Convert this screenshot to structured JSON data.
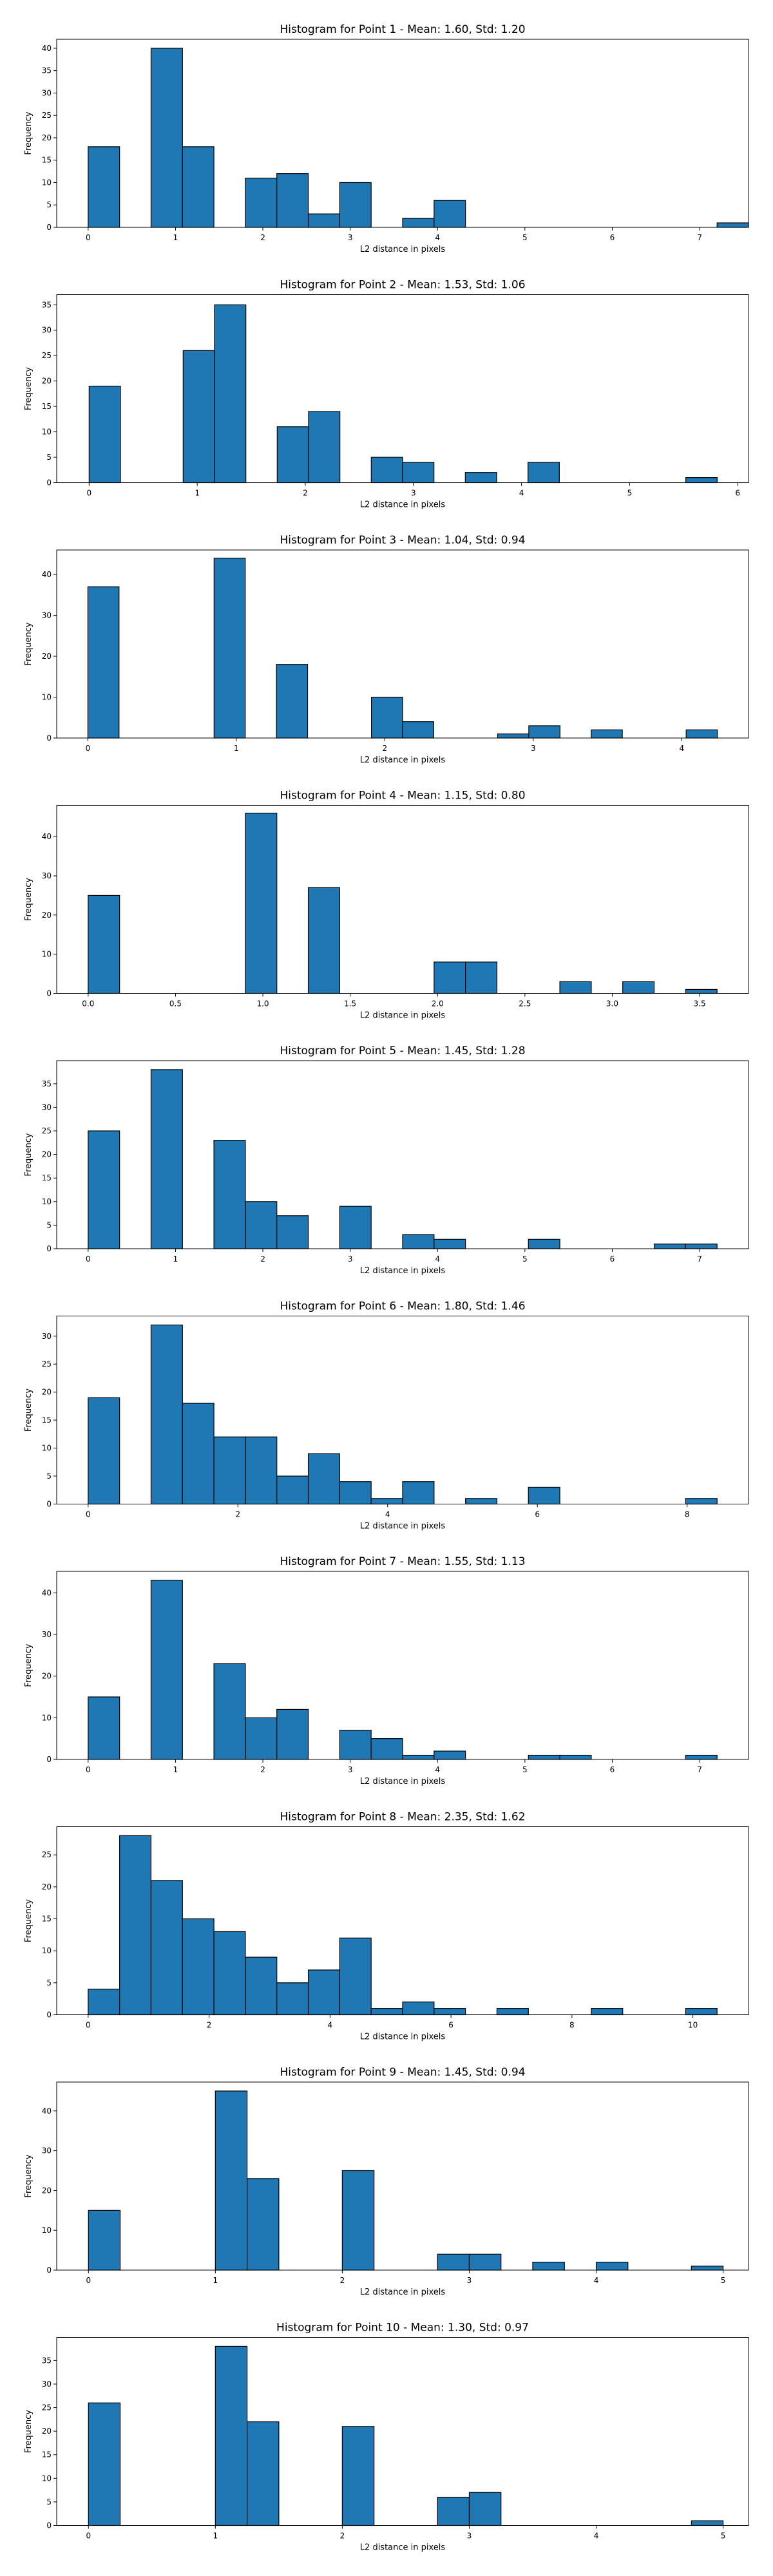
{
  "figure": {
    "background": "#ffffff",
    "bar_color": "#1f77b4",
    "edge_color": "#000000"
  },
  "chart_data": [
    {
      "type": "bar",
      "title": "Histogram for Point 1 - Mean: 1.60, Std: 1.20",
      "xlabel": "L2 distance in pixels",
      "ylabel": "Frequency",
      "xlim": [
        -0.36,
        7.56
      ],
      "ylim": [
        0,
        42
      ],
      "xticks": [
        0,
        1,
        2,
        3,
        4,
        5,
        6,
        7
      ],
      "yticks": [
        0,
        5,
        10,
        15,
        20,
        25,
        30,
        35,
        40
      ],
      "xtick_labels": [
        "0",
        "1",
        "2",
        "3",
        "4",
        "5",
        "6",
        "7"
      ],
      "ytick_labels": [
        "0",
        "5",
        "10",
        "15",
        "20",
        "25",
        "30",
        "35",
        "40"
      ],
      "bins": [
        {
          "x0": 0.0,
          "x1": 0.36,
          "count": 18
        },
        {
          "x0": 0.72,
          "x1": 1.08,
          "count": 40
        },
        {
          "x0": 1.08,
          "x1": 1.44,
          "count": 18
        },
        {
          "x0": 1.8,
          "x1": 2.16,
          "count": 11
        },
        {
          "x0": 2.16,
          "x1": 2.52,
          "count": 12
        },
        {
          "x0": 2.52,
          "x1": 2.88,
          "count": 3
        },
        {
          "x0": 2.88,
          "x1": 3.24,
          "count": 10
        },
        {
          "x0": 3.6,
          "x1": 3.96,
          "count": 2
        },
        {
          "x0": 3.96,
          "x1": 4.32,
          "count": 6
        },
        {
          "x0": 7.2,
          "x1": 7.56,
          "count": 1
        }
      ]
    },
    {
      "type": "bar",
      "title": "Histogram for Point 2 - Mean: 1.53, Std: 1.06",
      "xlabel": "L2 distance in pixels",
      "ylabel": "Frequency",
      "xlim": [
        -0.3,
        6.1
      ],
      "ylim": [
        0,
        37
      ],
      "xticks": [
        0,
        1,
        2,
        3,
        4,
        5,
        6
      ],
      "yticks": [
        0,
        5,
        10,
        15,
        20,
        25,
        30,
        35
      ],
      "xtick_labels": [
        "0",
        "1",
        "2",
        "3",
        "4",
        "5",
        "6"
      ],
      "ytick_labels": [
        "0",
        "5",
        "10",
        "15",
        "20",
        "25",
        "30",
        "35"
      ],
      "bins": [
        {
          "x0": 0.0,
          "x1": 0.29,
          "count": 19
        },
        {
          "x0": 0.87,
          "x1": 1.16,
          "count": 26
        },
        {
          "x0": 1.16,
          "x1": 1.45,
          "count": 35
        },
        {
          "x0": 1.74,
          "x1": 2.03,
          "count": 11
        },
        {
          "x0": 2.03,
          "x1": 2.32,
          "count": 14
        },
        {
          "x0": 2.61,
          "x1": 2.9,
          "count": 5
        },
        {
          "x0": 2.9,
          "x1": 3.19,
          "count": 4
        },
        {
          "x0": 3.48,
          "x1": 3.77,
          "count": 2
        },
        {
          "x0": 4.06,
          "x1": 4.35,
          "count": 4
        },
        {
          "x0": 5.52,
          "x1": 5.81,
          "count": 1
        }
      ]
    },
    {
      "type": "bar",
      "title": "Histogram for Point 3 - Mean: 1.04, Std: 0.94",
      "xlabel": "L2 distance in pixels",
      "ylabel": "Frequency",
      "xlim": [
        -0.21,
        4.45
      ],
      "ylim": [
        0,
        46
      ],
      "xticks": [
        0,
        1,
        2,
        3,
        4
      ],
      "yticks": [
        0,
        10,
        20,
        30,
        40
      ],
      "xtick_labels": [
        "0",
        "1",
        "2",
        "3",
        "4"
      ],
      "ytick_labels": [
        "0",
        "10",
        "20",
        "30",
        "40"
      ],
      "bins": [
        {
          "x0": 0.0,
          "x1": 0.21,
          "count": 37
        },
        {
          "x0": 0.85,
          "x1": 1.06,
          "count": 44
        },
        {
          "x0": 1.27,
          "x1": 1.48,
          "count": 18
        },
        {
          "x0": 1.91,
          "x1": 2.12,
          "count": 10
        },
        {
          "x0": 2.12,
          "x1": 2.33,
          "count": 4
        },
        {
          "x0": 2.76,
          "x1": 2.97,
          "count": 1
        },
        {
          "x0": 2.97,
          "x1": 3.18,
          "count": 3
        },
        {
          "x0": 3.39,
          "x1": 3.6,
          "count": 2
        },
        {
          "x0": 4.03,
          "x1": 4.24,
          "count": 2
        }
      ]
    },
    {
      "type": "bar",
      "title": "Histogram for Point 4 - Mean: 1.15, Std: 0.80",
      "xlabel": "L2 distance in pixels",
      "ylabel": "Frequency",
      "xlim": [
        -0.18,
        3.78
      ],
      "ylim": [
        0,
        48
      ],
      "xticks": [
        0.0,
        0.5,
        1.0,
        1.5,
        2.0,
        2.5,
        3.0,
        3.5
      ],
      "yticks": [
        0,
        10,
        20,
        30,
        40
      ],
      "xtick_labels": [
        "0.0",
        "0.5",
        "1.0",
        "1.5",
        "2.0",
        "2.5",
        "3.0",
        "3.5"
      ],
      "ytick_labels": [
        "0",
        "10",
        "20",
        "30",
        "40"
      ],
      "bins": [
        {
          "x0": 0.0,
          "x1": 0.18,
          "count": 25
        },
        {
          "x0": 0.9,
          "x1": 1.08,
          "count": 46
        },
        {
          "x0": 1.26,
          "x1": 1.44,
          "count": 27
        },
        {
          "x0": 1.98,
          "x1": 2.16,
          "count": 8
        },
        {
          "x0": 2.16,
          "x1": 2.34,
          "count": 8
        },
        {
          "x0": 2.7,
          "x1": 2.88,
          "count": 3
        },
        {
          "x0": 3.06,
          "x1": 3.24,
          "count": 3
        },
        {
          "x0": 3.42,
          "x1": 3.6,
          "count": 1
        }
      ]
    },
    {
      "type": "bar",
      "title": "Histogram for Point 5 - Mean: 1.45, Std: 1.28",
      "xlabel": "L2 distance in pixels",
      "ylabel": "Frequency",
      "xlim": [
        -0.36,
        7.56
      ],
      "ylim": [
        0,
        39.9
      ],
      "xticks": [
        0,
        1,
        2,
        3,
        4,
        5,
        6,
        7
      ],
      "yticks": [
        0,
        5,
        10,
        15,
        20,
        25,
        30,
        35
      ],
      "xtick_labels": [
        "0",
        "1",
        "2",
        "3",
        "4",
        "5",
        "6",
        "7"
      ],
      "ytick_labels": [
        "0",
        "5",
        "10",
        "15",
        "20",
        "25",
        "30",
        "35"
      ],
      "bins": [
        {
          "x0": 0.0,
          "x1": 0.36,
          "count": 25
        },
        {
          "x0": 0.72,
          "x1": 1.08,
          "count": 38
        },
        {
          "x0": 1.44,
          "x1": 1.8,
          "count": 23
        },
        {
          "x0": 1.8,
          "x1": 2.16,
          "count": 10
        },
        {
          "x0": 2.16,
          "x1": 2.52,
          "count": 7
        },
        {
          "x0": 2.88,
          "x1": 3.24,
          "count": 9
        },
        {
          "x0": 3.6,
          "x1": 3.96,
          "count": 3
        },
        {
          "x0": 3.96,
          "x1": 4.32,
          "count": 2
        },
        {
          "x0": 5.04,
          "x1": 5.4,
          "count": 2
        },
        {
          "x0": 6.48,
          "x1": 6.84,
          "count": 1
        },
        {
          "x0": 6.84,
          "x1": 7.2,
          "count": 1
        }
      ]
    },
    {
      "type": "bar",
      "title": "Histogram for Point 6 - Mean: 1.80, Std: 1.46",
      "xlabel": "L2 distance in pixels",
      "ylabel": "Frequency",
      "xlim": [
        -0.42,
        8.82
      ],
      "ylim": [
        0,
        33.6
      ],
      "xticks": [
        0,
        2,
        4,
        6,
        8
      ],
      "yticks": [
        0,
        5,
        10,
        15,
        20,
        25,
        30
      ],
      "xtick_labels": [
        "0",
        "2",
        "4",
        "6",
        "8"
      ],
      "ytick_labels": [
        "0",
        "5",
        "10",
        "15",
        "20",
        "25",
        "30"
      ],
      "bins": [
        {
          "x0": 0.0,
          "x1": 0.42,
          "count": 19
        },
        {
          "x0": 0.84,
          "x1": 1.26,
          "count": 32
        },
        {
          "x0": 1.26,
          "x1": 1.68,
          "count": 18
        },
        {
          "x0": 1.68,
          "x1": 2.1,
          "count": 12
        },
        {
          "x0": 2.1,
          "x1": 2.52,
          "count": 12
        },
        {
          "x0": 2.52,
          "x1": 2.94,
          "count": 5
        },
        {
          "x0": 2.94,
          "x1": 3.36,
          "count": 9
        },
        {
          "x0": 3.36,
          "x1": 3.78,
          "count": 4
        },
        {
          "x0": 3.78,
          "x1": 4.2,
          "count": 1
        },
        {
          "x0": 4.2,
          "x1": 4.62,
          "count": 4
        },
        {
          "x0": 5.04,
          "x1": 5.46,
          "count": 1
        },
        {
          "x0": 5.88,
          "x1": 6.3,
          "count": 3
        },
        {
          "x0": 7.98,
          "x1": 8.4,
          "count": 1
        }
      ]
    },
    {
      "type": "bar",
      "title": "Histogram for Point 7 - Mean: 1.55, Std: 1.13",
      "xlabel": "L2 distance in pixels",
      "ylabel": "Frequency",
      "xlim": [
        -0.36,
        7.56
      ],
      "ylim": [
        0,
        45.15
      ],
      "xticks": [
        0,
        1,
        2,
        3,
        4,
        5,
        6,
        7
      ],
      "yticks": [
        0,
        10,
        20,
        30,
        40
      ],
      "xtick_labels": [
        "0",
        "1",
        "2",
        "3",
        "4",
        "5",
        "6",
        "7"
      ],
      "ytick_labels": [
        "0",
        "10",
        "20",
        "30",
        "40"
      ],
      "bins": [
        {
          "x0": 0.0,
          "x1": 0.36,
          "count": 15
        },
        {
          "x0": 0.72,
          "x1": 1.08,
          "count": 43
        },
        {
          "x0": 1.44,
          "x1": 1.8,
          "count": 23
        },
        {
          "x0": 1.8,
          "x1": 2.16,
          "count": 10
        },
        {
          "x0": 2.16,
          "x1": 2.52,
          "count": 12
        },
        {
          "x0": 2.88,
          "x1": 3.24,
          "count": 7
        },
        {
          "x0": 3.24,
          "x1": 3.6,
          "count": 5
        },
        {
          "x0": 3.6,
          "x1": 3.96,
          "count": 1
        },
        {
          "x0": 3.96,
          "x1": 4.32,
          "count": 2
        },
        {
          "x0": 5.04,
          "x1": 5.4,
          "count": 1
        },
        {
          "x0": 5.4,
          "x1": 5.76,
          "count": 1
        },
        {
          "x0": 6.84,
          "x1": 7.2,
          "count": 1
        }
      ]
    },
    {
      "type": "bar",
      "title": "Histogram for Point 8 - Mean: 2.35, Std: 1.62",
      "xlabel": "L2 distance in pixels",
      "ylabel": "Frequency",
      "xlim": [
        -0.52,
        10.92
      ],
      "ylim": [
        0,
        29.4
      ],
      "xticks": [
        0,
        2,
        4,
        6,
        8,
        10
      ],
      "yticks": [
        0,
        5,
        10,
        15,
        20,
        25
      ],
      "xtick_labels": [
        "0",
        "2",
        "4",
        "6",
        "8",
        "10"
      ],
      "ytick_labels": [
        "0",
        "5",
        "10",
        "15",
        "20",
        "25"
      ],
      "bins": [
        {
          "x0": 0.0,
          "x1": 0.52,
          "count": 4
        },
        {
          "x0": 0.52,
          "x1": 1.04,
          "count": 28
        },
        {
          "x0": 1.04,
          "x1": 1.56,
          "count": 21
        },
        {
          "x0": 1.56,
          "x1": 2.08,
          "count": 15
        },
        {
          "x0": 2.08,
          "x1": 2.6,
          "count": 13
        },
        {
          "x0": 2.6,
          "x1": 3.12,
          "count": 9
        },
        {
          "x0": 3.12,
          "x1": 3.64,
          "count": 5
        },
        {
          "x0": 3.64,
          "x1": 4.16,
          "count": 7
        },
        {
          "x0": 4.16,
          "x1": 4.68,
          "count": 12
        },
        {
          "x0": 4.68,
          "x1": 5.2,
          "count": 1
        },
        {
          "x0": 5.2,
          "x1": 5.72,
          "count": 2
        },
        {
          "x0": 5.72,
          "x1": 6.24,
          "count": 1
        },
        {
          "x0": 6.76,
          "x1": 7.28,
          "count": 1
        },
        {
          "x0": 8.32,
          "x1": 8.84,
          "count": 1
        },
        {
          "x0": 9.88,
          "x1": 10.4,
          "count": 1
        }
      ]
    },
    {
      "type": "bar",
      "title": "Histogram for Point 9 - Mean: 1.45, Std: 0.94",
      "xlabel": "L2 distance in pixels",
      "ylabel": "Frequency",
      "xlim": [
        -0.25,
        5.2
      ],
      "ylim": [
        0,
        47.25
      ],
      "xticks": [
        0,
        1,
        2,
        3,
        4,
        5
      ],
      "yticks": [
        0,
        10,
        20,
        30,
        40
      ],
      "xtick_labels": [
        "0",
        "1",
        "2",
        "3",
        "4",
        "5"
      ],
      "ytick_labels": [
        "0",
        "10",
        "20",
        "30",
        "40"
      ],
      "bins": [
        {
          "x0": 0.0,
          "x1": 0.25,
          "count": 15
        },
        {
          "x0": 1.0,
          "x1": 1.25,
          "count": 45
        },
        {
          "x0": 1.25,
          "x1": 1.5,
          "count": 23
        },
        {
          "x0": 2.0,
          "x1": 2.25,
          "count": 25
        },
        {
          "x0": 2.75,
          "x1": 3.0,
          "count": 4
        },
        {
          "x0": 3.0,
          "x1": 3.25,
          "count": 4
        },
        {
          "x0": 3.5,
          "x1": 3.75,
          "count": 2
        },
        {
          "x0": 4.0,
          "x1": 4.25,
          "count": 2
        },
        {
          "x0": 4.75,
          "x1": 5.0,
          "count": 1
        }
      ]
    },
    {
      "type": "bar",
      "title": "Histogram for Point 10 - Mean: 1.30, Std: 0.97",
      "xlabel": "L2 distance in pixels",
      "ylabel": "Frequency",
      "xlim": [
        -0.25,
        5.2
      ],
      "ylim": [
        0,
        39.9
      ],
      "xticks": [
        0,
        1,
        2,
        3,
        4,
        5
      ],
      "yticks": [
        0,
        5,
        10,
        15,
        20,
        25,
        30,
        35
      ],
      "xtick_labels": [
        "0",
        "1",
        "2",
        "3",
        "4",
        "5"
      ],
      "ytick_labels": [
        "0",
        "5",
        "10",
        "15",
        "20",
        "25",
        "30",
        "35"
      ],
      "bins": [
        {
          "x0": 0.0,
          "x1": 0.25,
          "count": 26
        },
        {
          "x0": 1.0,
          "x1": 1.25,
          "count": 38
        },
        {
          "x0": 1.25,
          "x1": 1.5,
          "count": 22
        },
        {
          "x0": 2.0,
          "x1": 2.25,
          "count": 21
        },
        {
          "x0": 2.75,
          "x1": 3.0,
          "count": 6
        },
        {
          "x0": 3.0,
          "x1": 3.25,
          "count": 7
        },
        {
          "x0": 4.75,
          "x1": 5.0,
          "count": 1
        }
      ]
    }
  ]
}
